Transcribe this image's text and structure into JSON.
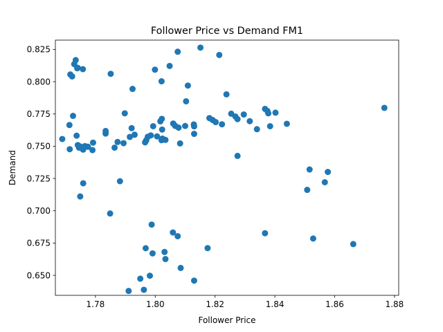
{
  "chart_data": {
    "type": "scatter",
    "title": "Follower Price vs Demand FM1",
    "xlabel": "Follower Price",
    "ylabel": "Demand",
    "xlim": [
      1.7666,
      1.8814
    ],
    "ylim": [
      0.6345,
      0.8322
    ],
    "xticks": [
      1.78,
      1.8,
      1.82,
      1.84,
      1.86,
      1.88
    ],
    "xtick_labels": [
      "1.78",
      "1.80",
      "1.82",
      "1.84",
      "1.86",
      "1.88"
    ],
    "yticks": [
      0.65,
      0.675,
      0.7,
      0.725,
      0.75,
      0.775,
      0.8,
      0.825
    ],
    "ytick_labels": [
      "0.650",
      "0.675",
      "0.700",
      "0.725",
      "0.750",
      "0.775",
      "0.800",
      "0.825"
    ],
    "grid": false,
    "legend": "none",
    "marker_color": "#1f77b4",
    "x": [
      1.7716,
      1.7722,
      1.7729,
      1.7734,
      1.7739,
      1.7741,
      1.7758,
      1.7851,
      1.7999,
      1.8021,
      1.8048,
      1.8075,
      1.8151,
      1.8214,
      1.8109,
      1.7924,
      1.8103,
      1.8238,
      1.7713,
      1.7725,
      1.7689,
      1.7714,
      1.7737,
      1.7745,
      1.7758,
      1.7775,
      1.7765,
      1.7759,
      1.7748,
      1.7741,
      1.7792,
      1.779,
      1.7834,
      1.7834,
      1.7864,
      1.7874,
      1.7894,
      1.7898,
      1.7915,
      1.7921,
      1.7931,
      1.7966,
      1.7975,
      1.797,
      1.7985,
      1.7993,
      1.8006,
      1.8017,
      1.8022,
      1.8023,
      1.8024,
      1.8021,
      1.8034,
      1.806,
      1.8067,
      1.8078,
      1.8083,
      1.81,
      1.813,
      1.813,
      1.8129,
      1.8181,
      1.8192,
      1.8202,
      1.8223,
      1.8254,
      1.8268,
      1.8275,
      1.8296,
      1.8316,
      1.834,
      1.8367,
      1.8375,
      1.8378,
      1.8384,
      1.8402,
      1.844,
      1.8275,
      1.8766,
      1.8516,
      1.8577,
      1.8508,
      1.8567,
      1.7759,
      1.7749,
      1.7849,
      1.7882,
      1.7988,
      1.8059,
      1.8075,
      1.8367,
      1.8528,
      1.8662,
      1.7968,
      1.8031,
      1.7991,
      1.795,
      1.8085,
      1.7982,
      1.8034,
      1.8175,
      1.7962,
      1.7911,
      1.813
    ],
    "y": [
      0.8056,
      0.8041,
      0.8136,
      0.8167,
      0.8104,
      0.8107,
      0.8097,
      0.8061,
      0.8093,
      0.8003,
      0.8122,
      0.8232,
      0.8264,
      0.8207,
      0.797,
      0.7944,
      0.7848,
      0.7902,
      0.7664,
      0.7735,
      0.7556,
      0.7477,
      0.7582,
      0.7489,
      0.7476,
      0.7496,
      0.7501,
      0.7474,
      0.7499,
      0.7509,
      0.7528,
      0.747,
      0.7598,
      0.7618,
      0.7489,
      0.7533,
      0.7524,
      0.7755,
      0.7572,
      0.764,
      0.7589,
      0.753,
      0.7573,
      0.7547,
      0.7584,
      0.7655,
      0.7576,
      0.7693,
      0.7712,
      0.7629,
      0.7559,
      0.7547,
      0.7549,
      0.7676,
      0.7657,
      0.7644,
      0.7522,
      0.7657,
      0.7596,
      0.7654,
      0.7669,
      0.7718,
      0.7703,
      0.7687,
      0.767,
      0.7752,
      0.773,
      0.771,
      0.7746,
      0.7694,
      0.7632,
      0.7789,
      0.7773,
      0.7755,
      0.7655,
      0.776,
      0.7674,
      0.7425,
      0.7797,
      0.732,
      0.7301,
      0.7162,
      0.7221,
      0.7213,
      0.7111,
      0.6979,
      0.7229,
      0.6893,
      0.6832,
      0.6803,
      0.6826,
      0.6785,
      0.6742,
      0.671,
      0.6681,
      0.667,
      0.6474,
      0.6557,
      0.6497,
      0.6626,
      0.6711,
      0.6388,
      0.6379,
      0.6459
    ]
  }
}
